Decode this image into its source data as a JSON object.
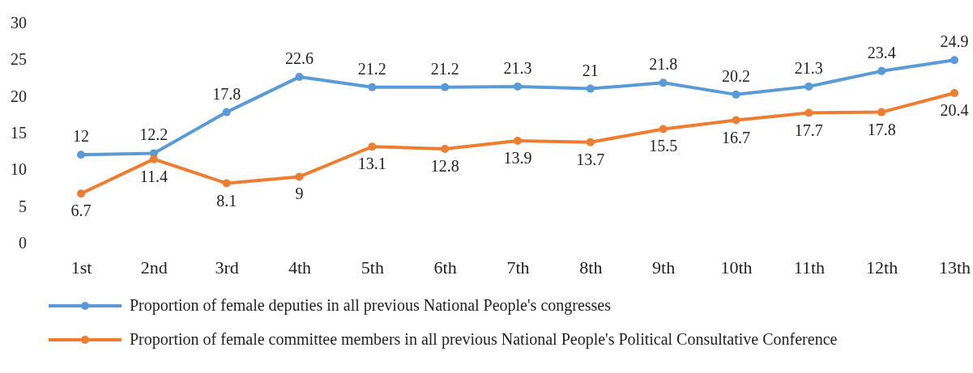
{
  "chart_data": {
    "type": "line",
    "categories": [
      "1st",
      "2nd",
      "3rd",
      "4th",
      "5th",
      "6th",
      "7th",
      "8th",
      "9th",
      "10th",
      "11th",
      "12th",
      "13th"
    ],
    "series": [
      {
        "name": "Proportion of female deputies in all previous National People's congresses",
        "color": "#5b9bd5",
        "values": [
          12,
          12.2,
          17.8,
          22.6,
          21.2,
          21.2,
          21.3,
          21,
          21.8,
          20.2,
          21.3,
          23.4,
          24.9
        ]
      },
      {
        "name": "Proportion of female committee members in all previous National People's Political Consultative Conference",
        "color": "#ed7d31",
        "values": [
          6.7,
          11.4,
          8.1,
          9,
          13.1,
          12.8,
          13.9,
          13.7,
          15.5,
          16.7,
          17.7,
          17.8,
          20.4
        ]
      }
    ],
    "ylim": [
      0,
      30
    ],
    "yticks": [
      0,
      5,
      10,
      15,
      20,
      25,
      30
    ],
    "grid": false,
    "legend": "bottom",
    "marker": "circle",
    "line_style": "solid",
    "data_labels": true
  }
}
